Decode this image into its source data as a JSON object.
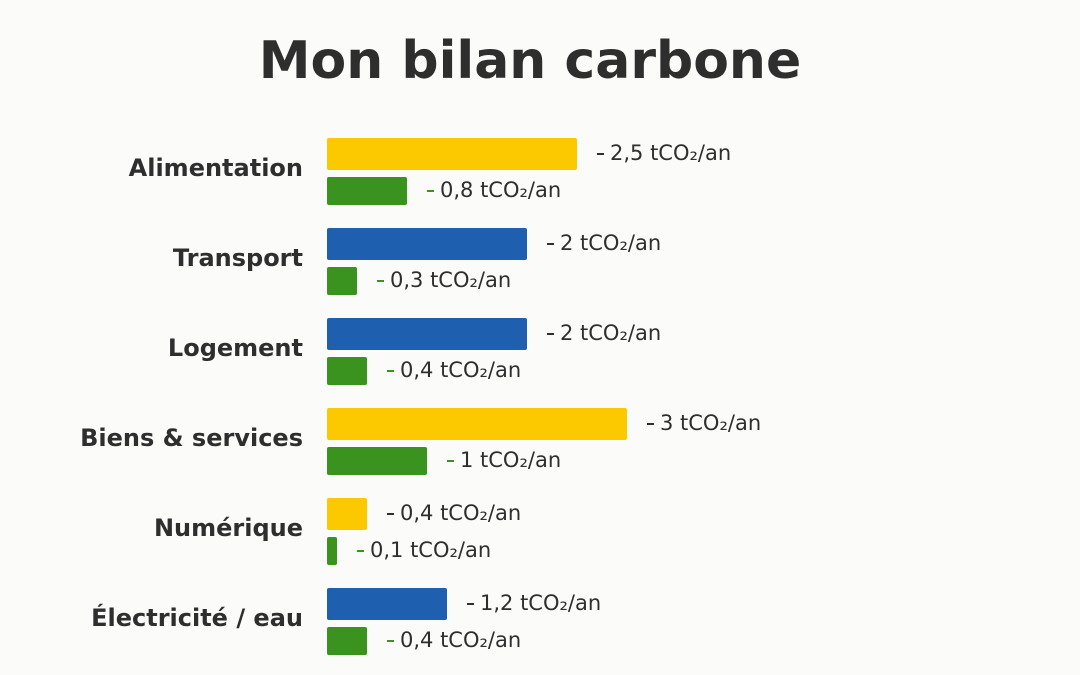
{
  "chart_data": {
    "type": "bar",
    "orientation": "horizontal",
    "title": "Mon bilan carbone",
    "categories": [
      "Alimentation",
      "Transport",
      "Logement",
      "Biens & services",
      "Numérique",
      "Électricité / eau"
    ],
    "series": [
      {
        "colors": [
          "#fcc800",
          "#1f5fb0",
          "#1f5fb0",
          "#fcc800",
          "#fcc800",
          "#1f5fb0"
        ],
        "values": [
          2.5,
          2,
          2,
          3,
          0.4,
          1.2
        ],
        "value_labels": [
          "2,5 tCO₂/an",
          "2 tCO₂/an",
          "2 tCO₂/an",
          "3 tCO₂/an",
          "0,4 tCO₂/an",
          "1,2 tCO₂/an"
        ]
      },
      {
        "color": "#3a921f",
        "values": [
          0.8,
          0.3,
          0.4,
          1,
          0.1,
          0.4
        ],
        "value_labels": [
          "0,8 tCO₂/an",
          "0,3 tCO₂/an",
          "0,4 tCO₂/an",
          "1 tCO₂/an",
          "0,1 tCO₂/an",
          "0,4 tCO₂/an"
        ]
      }
    ]
  }
}
